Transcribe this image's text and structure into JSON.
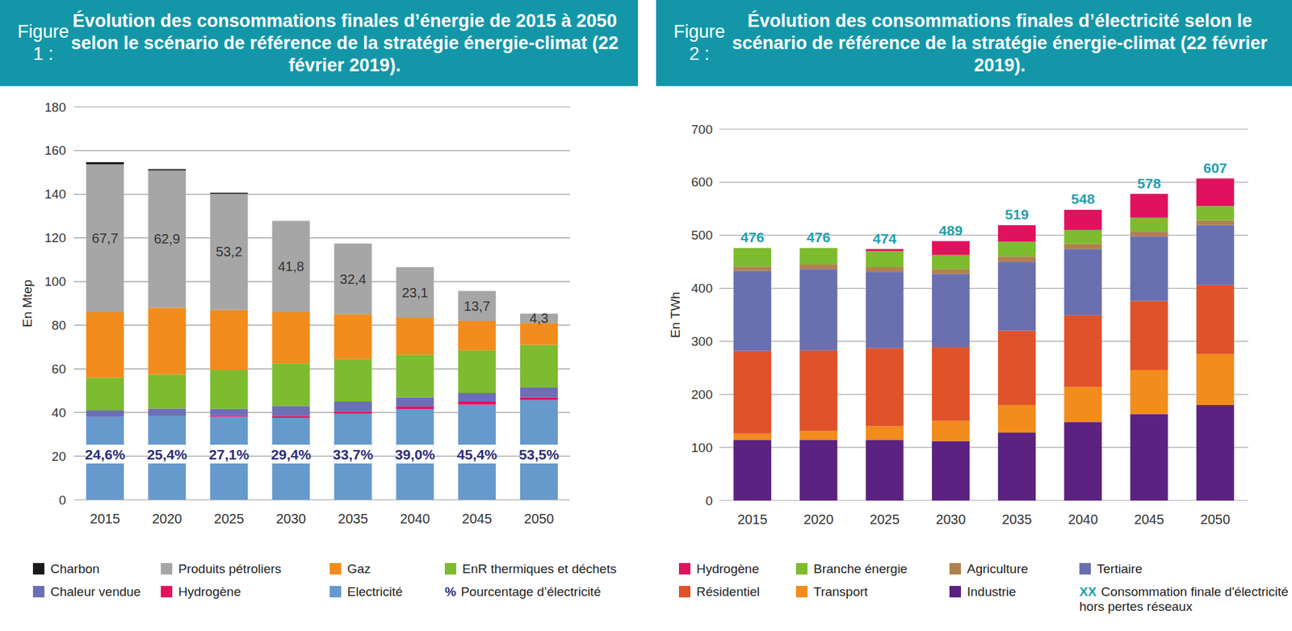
{
  "chart_data": [
    {
      "type": "bar",
      "stacked": true,
      "grid": true,
      "legend": "bottom",
      "title": "Figure 1 : Évolution des consommations finales d’énergie de 2015 à 2050 selon le scénario de référence de la stratégie énergie-climat (22 février 2019).",
      "y_label": "En Mtep",
      "categories": [
        "2015",
        "2020",
        "2025",
        "2030",
        "2035",
        "2040",
        "2045",
        "2050"
      ],
      "ylim": [
        0,
        180
      ],
      "yticks": [
        0,
        20,
        40,
        60,
        80,
        100,
        120,
        140,
        160,
        180
      ],
      "series": [
        {
          "name": "Electricité",
          "color": "#6699cc",
          "values": [
            38.0,
            38.5,
            38.1,
            37.6,
            39.5,
            41.6,
            43.6,
            45.7
          ]
        },
        {
          "name": "Hydrogène",
          "color": "#e0125e",
          "values": [
            0,
            0,
            0.5,
            0.8,
            1.0,
            1.2,
            1.4,
            1.3
          ]
        },
        {
          "name": "Chaleur vendue",
          "color": "#6c6fb5",
          "values": [
            3.0,
            3.3,
            3.1,
            4.6,
            4.5,
            4.2,
            4.0,
            4.5
          ]
        },
        {
          "name": "EnR thermiques et déchets",
          "color": "#7dbb2f",
          "values": [
            15.0,
            15.7,
            17.8,
            19.5,
            19.5,
            19.5,
            19.5,
            19.5
          ]
        },
        {
          "name": "Gaz",
          "color": "#f28c1c",
          "values": [
            30.0,
            30.5,
            27.5,
            23.5,
            20.5,
            17.0,
            13.5,
            10.0
          ]
        },
        {
          "name": "Produits pétroliers",
          "color": "#a6a6a6",
          "data_labels": true,
          "values": [
            67.7,
            62.9,
            53.2,
            41.8,
            32.4,
            23.1,
            13.7,
            4.3
          ],
          "value_labels": [
            "67,7",
            "62,9",
            "53,2",
            "41,8",
            "32,4",
            "23,1",
            "13,7",
            "4,3"
          ]
        },
        {
          "name": "Charbon",
          "color": "#1a1a1a",
          "values": [
            1.0,
            0.6,
            0.5,
            0,
            0,
            0,
            0,
            0
          ]
        }
      ],
      "annotation_series": {
        "symbol": "%",
        "name": "Pourcentage d’électricité",
        "color": "#2b2d7c",
        "values": [
          24.6,
          25.4,
          27.1,
          29.4,
          33.7,
          39.0,
          45.4,
          53.5
        ],
        "value_labels": [
          "24,6%",
          "25,4%",
          "27,1%",
          "29,4%",
          "33,7%",
          "39,0%",
          "45,4%",
          "53,5%"
        ]
      }
    },
    {
      "type": "bar",
      "stacked": true,
      "grid": true,
      "legend": "bottom",
      "title": "Figure 2 : Évolution des consommations finales d’électricité selon le scénario de référence de la stratégie énergie-climat (22 février 2019).",
      "y_label": "En TWh",
      "categories": [
        "2015",
        "2020",
        "2025",
        "2030",
        "2035",
        "2040",
        "2045",
        "2050"
      ],
      "ylim": [
        0,
        700
      ],
      "yticks": [
        0,
        100,
        200,
        300,
        400,
        500,
        600,
        700
      ],
      "series": [
        {
          "name": "Industrie",
          "color": "#5b2281",
          "values": [
            114,
            114,
            114,
            112,
            128,
            148,
            163,
            180
          ]
        },
        {
          "name": "Transport",
          "color": "#f28c1c",
          "values": [
            12,
            17,
            26,
            38,
            52,
            66,
            83,
            96
          ]
        },
        {
          "name": "Résidentiel",
          "color": "#e0522a",
          "values": [
            156,
            152,
            147,
            139,
            140,
            135,
            130,
            130
          ]
        },
        {
          "name": "Tertiaire",
          "color": "#6a6fb0",
          "values": [
            151,
            153,
            144,
            138,
            130,
            125,
            122,
            113
          ]
        },
        {
          "name": "Agriculture",
          "color": "#b08050",
          "values": [
            8,
            9,
            9,
            9,
            10,
            10,
            9,
            9
          ]
        },
        {
          "name": "Branche énergie",
          "color": "#7dbb2f",
          "values": [
            35,
            31,
            30,
            27,
            28,
            26,
            26,
            27
          ]
        },
        {
          "name": "Hydrogène",
          "color": "#e0125e",
          "values": [
            0,
            0,
            4,
            26,
            31,
            38,
            45,
            52
          ]
        }
      ],
      "annotation_series": {
        "symbol": "XX",
        "name": "Consommation finale d'électricité hors pertes réseaux",
        "color": "#1ea0b0",
        "values": [
          476,
          476,
          474,
          489,
          519,
          548,
          578,
          607
        ]
      }
    }
  ]
}
